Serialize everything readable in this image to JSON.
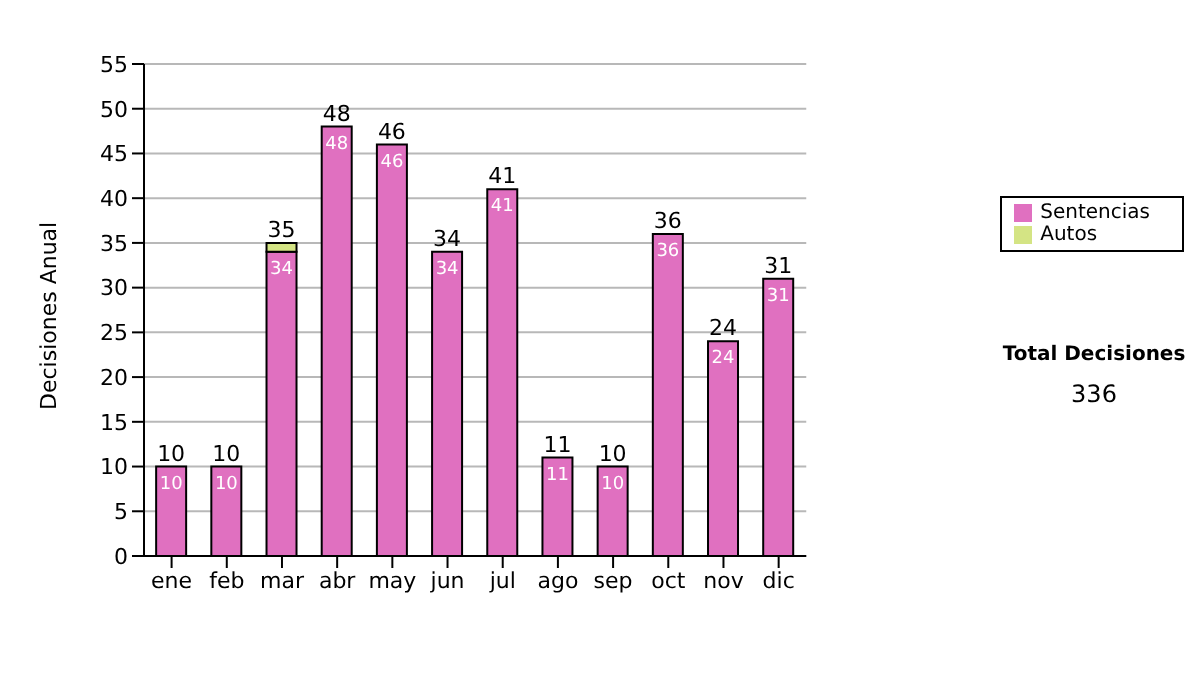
{
  "chart_data": {
    "type": "bar",
    "stacked": true,
    "ylabel": "Decisiones Anual",
    "categories": [
      "ene",
      "feb",
      "mar",
      "abr",
      "may",
      "jun",
      "jul",
      "ago",
      "sep",
      "oct",
      "nov",
      "dic"
    ],
    "series": [
      {
        "name": "Sentencias",
        "color": "#e070c0",
        "values": [
          10,
          10,
          34,
          48,
          46,
          34,
          41,
          11,
          10,
          36,
          24,
          31
        ],
        "value_labels": [
          "10",
          "10",
          "34",
          "48",
          "46",
          "34",
          "41",
          "11",
          "10",
          "36",
          "24",
          "31"
        ]
      },
      {
        "name": "Autos",
        "color": "#d4e484",
        "values": [
          0,
          0,
          1,
          0,
          0,
          0,
          0,
          0,
          0,
          0,
          0,
          0
        ]
      }
    ],
    "totals": [
      "10",
      "10",
      "35",
      "48",
      "46",
      "34",
      "41",
      "11",
      "10",
      "36",
      "24",
      "31"
    ],
    "ylim": [
      0,
      55
    ],
    "yticks": [
      0,
      5,
      10,
      15,
      20,
      25,
      30,
      35,
      40,
      45,
      50,
      55
    ],
    "grid": "y",
    "legend": "right",
    "annotations": [
      "Total Decisiones",
      "336"
    ]
  }
}
